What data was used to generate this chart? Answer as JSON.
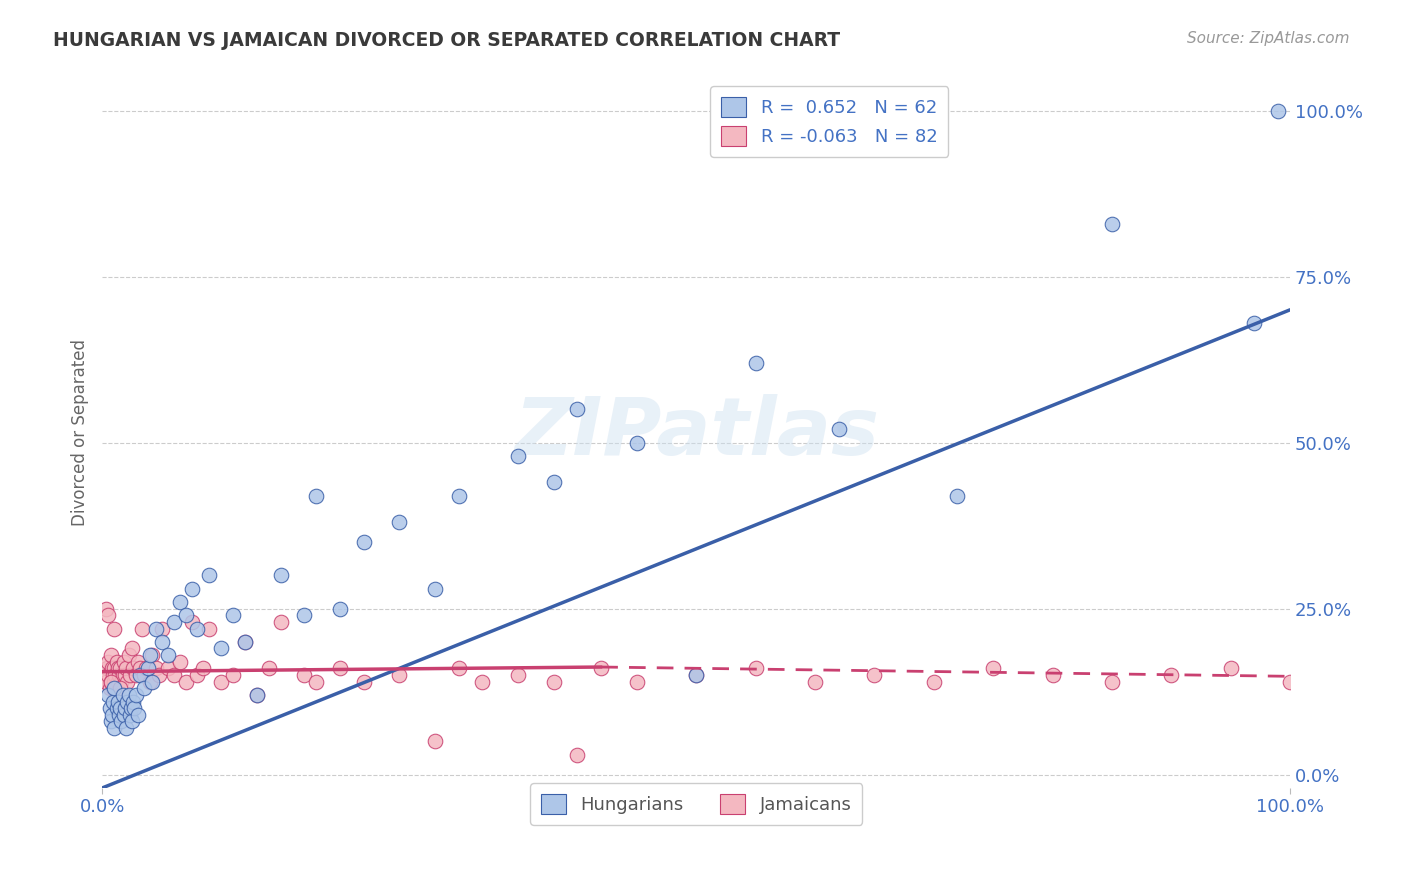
{
  "title": "HUNGARIAN VS JAMAICAN DIVORCED OR SEPARATED CORRELATION CHART",
  "source": "Source: ZipAtlas.com",
  "ylabel": "Divorced or Separated",
  "watermark": "ZIPatlas",
  "legend": {
    "hungarian": {
      "R": 0.652,
      "N": 62,
      "color": "#aec6e8",
      "line_color": "#3a5fa8"
    },
    "jamaican": {
      "R": -0.063,
      "N": 82,
      "color": "#f4b8c1",
      "line_color": "#c94070"
    }
  },
  "hungarian_x": [
    0.005,
    0.006,
    0.007,
    0.008,
    0.009,
    0.01,
    0.01,
    0.012,
    0.013,
    0.014,
    0.015,
    0.016,
    0.017,
    0.018,
    0.019,
    0.02,
    0.021,
    0.022,
    0.023,
    0.024,
    0.025,
    0.026,
    0.027,
    0.028,
    0.03,
    0.032,
    0.035,
    0.038,
    0.04,
    0.042,
    0.045,
    0.05,
    0.055,
    0.06,
    0.065,
    0.07,
    0.075,
    0.08,
    0.09,
    0.1,
    0.11,
    0.12,
    0.13,
    0.15,
    0.17,
    0.18,
    0.2,
    0.22,
    0.25,
    0.28,
    0.3,
    0.35,
    0.38,
    0.4,
    0.45,
    0.5,
    0.55,
    0.62,
    0.72,
    0.85,
    0.97,
    0.99
  ],
  "hungarian_y": [
    0.12,
    0.1,
    0.08,
    0.09,
    0.11,
    0.13,
    0.07,
    0.1,
    0.11,
    0.09,
    0.1,
    0.08,
    0.12,
    0.09,
    0.1,
    0.07,
    0.11,
    0.12,
    0.09,
    0.1,
    0.08,
    0.11,
    0.1,
    0.12,
    0.09,
    0.15,
    0.13,
    0.16,
    0.18,
    0.14,
    0.22,
    0.2,
    0.18,
    0.23,
    0.26,
    0.24,
    0.28,
    0.22,
    0.3,
    0.19,
    0.24,
    0.2,
    0.12,
    0.3,
    0.24,
    0.42,
    0.25,
    0.35,
    0.38,
    0.28,
    0.42,
    0.48,
    0.44,
    0.55,
    0.5,
    0.15,
    0.62,
    0.52,
    0.42,
    0.83,
    0.68,
    1.0
  ],
  "jamaican_x": [
    0.003,
    0.004,
    0.005,
    0.005,
    0.006,
    0.007,
    0.007,
    0.008,
    0.009,
    0.009,
    0.01,
    0.01,
    0.011,
    0.012,
    0.013,
    0.013,
    0.014,
    0.015,
    0.016,
    0.017,
    0.018,
    0.019,
    0.02,
    0.021,
    0.022,
    0.023,
    0.025,
    0.026,
    0.028,
    0.03,
    0.032,
    0.033,
    0.035,
    0.037,
    0.04,
    0.042,
    0.045,
    0.048,
    0.05,
    0.055,
    0.06,
    0.065,
    0.07,
    0.075,
    0.08,
    0.085,
    0.09,
    0.1,
    0.11,
    0.12,
    0.13,
    0.14,
    0.15,
    0.17,
    0.18,
    0.2,
    0.22,
    0.25,
    0.28,
    0.3,
    0.32,
    0.35,
    0.38,
    0.4,
    0.42,
    0.45,
    0.5,
    0.55,
    0.6,
    0.65,
    0.7,
    0.75,
    0.8,
    0.85,
    0.9,
    0.95,
    1.0,
    0.003,
    0.005,
    0.007,
    0.01,
    0.015
  ],
  "jamaican_y": [
    0.14,
    0.16,
    0.15,
    0.17,
    0.13,
    0.18,
    0.14,
    0.16,
    0.15,
    0.13,
    0.16,
    0.14,
    0.15,
    0.17,
    0.16,
    0.14,
    0.15,
    0.16,
    0.14,
    0.15,
    0.17,
    0.15,
    0.16,
    0.14,
    0.18,
    0.15,
    0.19,
    0.16,
    0.15,
    0.17,
    0.16,
    0.22,
    0.15,
    0.16,
    0.14,
    0.18,
    0.16,
    0.15,
    0.22,
    0.16,
    0.15,
    0.17,
    0.14,
    0.23,
    0.15,
    0.16,
    0.22,
    0.14,
    0.15,
    0.2,
    0.12,
    0.16,
    0.23,
    0.15,
    0.14,
    0.16,
    0.14,
    0.15,
    0.05,
    0.16,
    0.14,
    0.15,
    0.14,
    0.03,
    0.16,
    0.14,
    0.15,
    0.16,
    0.14,
    0.15,
    0.14,
    0.16,
    0.15,
    0.14,
    0.15,
    0.16,
    0.14,
    0.25,
    0.24,
    0.14,
    0.22,
    0.13
  ],
  "xlim": [
    0.0,
    1.0
  ],
  "ylim": [
    -0.02,
    1.05
  ],
  "ytick_positions": [
    0.0,
    0.25,
    0.5,
    0.75,
    1.0
  ],
  "ytick_labels": [
    "0.0%",
    "25.0%",
    "50.0%",
    "75.0%",
    "100.0%"
  ],
  "xtick_positions": [
    0.0,
    1.0
  ],
  "xtick_labels": [
    "0.0%",
    "100.0%"
  ],
  "grid_color": "#cccccc",
  "bg_color": "#ffffff",
  "title_color": "#3a3a3a",
  "axis_label_color": "#4472c4",
  "hungarian_line": {
    "x0": 0.0,
    "y0": -0.02,
    "x1": 1.0,
    "y1": 0.7
  },
  "jamaican_line_solid": {
    "x0": 0.0,
    "y0": 0.155,
    "x1": 0.42,
    "y1": 0.162
  },
  "jamaican_line_dashed": {
    "x0": 0.42,
    "y0": 0.162,
    "x1": 1.0,
    "y1": 0.148
  }
}
